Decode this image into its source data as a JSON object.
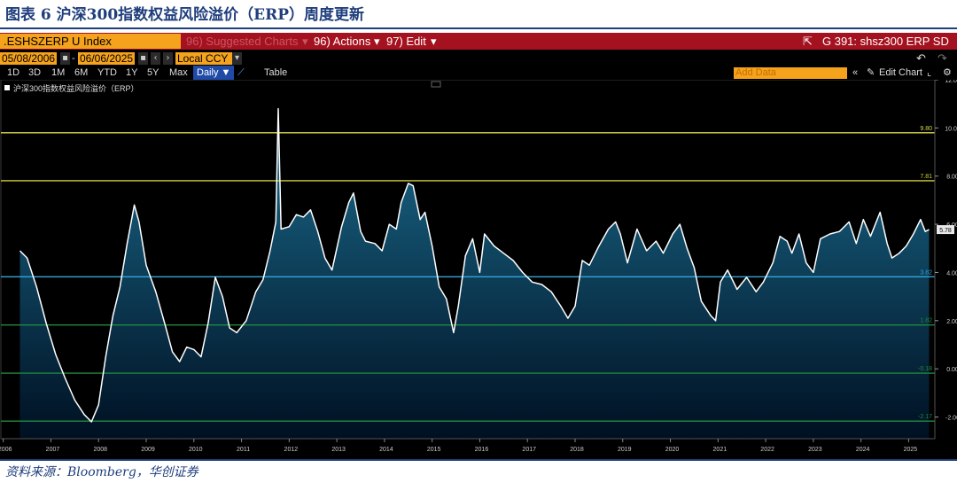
{
  "figure_title": "图表 6  沪深300指数权益风险溢价（ERP）周度更新",
  "source_note": "资料来源：Bloomberg，华创证券",
  "toolbar": {
    "ticker": ".ESHSZERP U Index",
    "suggested_charts": "96) Suggested Charts",
    "actions": "96) Actions",
    "edit": "97) Edit",
    "chart_id": "G 391: shsz300 ERP SD",
    "start_date": "05/08/2006",
    "end_date": "06/06/2025",
    "currency": "Local CCY",
    "periods": [
      "1D",
      "3D",
      "1M",
      "6M",
      "YTD",
      "1Y",
      "5Y",
      "Max"
    ],
    "frequency": "Daily",
    "table_label": "Table",
    "add_data_placeholder": "Add Data",
    "edit_chart": "Edit Chart"
  },
  "colors": {
    "accent_orange": "#f5a21c",
    "toolbar_red": "#a5121f",
    "series_line": "#ffffff",
    "area_fill_top": "#1b6d8f",
    "area_fill_bottom": "#001022",
    "mean_line": "#2fa6d8",
    "sd1_line": "#cfcf3a",
    "sd2_line": "#d9d94a",
    "sd_minus_line": "#1f8a3f"
  },
  "chart_data": {
    "type": "area",
    "legend": "沪深300指数权益风险溢价（ERP）",
    "x_ticks": [
      "2006",
      "2007",
      "2008",
      "2009",
      "2010",
      "2011",
      "2012",
      "2013",
      "2014",
      "2015",
      "2016",
      "2017",
      "2018",
      "2019",
      "2020",
      "2021",
      "2022",
      "2023",
      "2024",
      "2025"
    ],
    "ylim": [
      -2.9,
      12.0
    ],
    "y_ticks": [
      "12.00",
      "10.00",
      "8.00",
      "6.00",
      "4.00",
      "2.00",
      "0.00",
      "-2.00"
    ],
    "y_tick_values": [
      12,
      10,
      8,
      6,
      4,
      2,
      0,
      -2
    ],
    "last_value": "5.78",
    "reference_lines": [
      {
        "name": "+2SD",
        "value": 9.8,
        "label": "9.80"
      },
      {
        "name": "+1SD",
        "value": 7.81,
        "label": "7.81"
      },
      {
        "name": "mean",
        "value": 3.82,
        "label": "3.82"
      },
      {
        "name": "-1SD",
        "value": 1.82,
        "label": "1.82"
      },
      {
        "name": "-2SD",
        "value": -0.18,
        "label": "-0.18"
      },
      {
        "name": "-3SD",
        "value": -2.17,
        "label": "-2.17"
      }
    ],
    "series": [
      {
        "name": "沪深300指数权益风险溢价（ERP）",
        "points": [
          [
            2006.35,
            4.9
          ],
          [
            2006.5,
            4.6
          ],
          [
            2006.7,
            3.4
          ],
          [
            2006.9,
            1.9
          ],
          [
            2007.1,
            0.6
          ],
          [
            2007.3,
            -0.4
          ],
          [
            2007.5,
            -1.3
          ],
          [
            2007.7,
            -1.9
          ],
          [
            2007.85,
            -2.2
          ],
          [
            2008.0,
            -1.5
          ],
          [
            2008.15,
            0.5
          ],
          [
            2008.3,
            2.2
          ],
          [
            2008.45,
            3.4
          ],
          [
            2008.6,
            5.2
          ],
          [
            2008.75,
            6.8
          ],
          [
            2008.85,
            6.1
          ],
          [
            2009.0,
            4.3
          ],
          [
            2009.2,
            3.2
          ],
          [
            2009.4,
            1.8
          ],
          [
            2009.55,
            0.7
          ],
          [
            2009.7,
            0.3
          ],
          [
            2009.85,
            0.9
          ],
          [
            2010.0,
            0.8
          ],
          [
            2010.15,
            0.5
          ],
          [
            2010.3,
            1.9
          ],
          [
            2010.45,
            3.8
          ],
          [
            2010.6,
            3.0
          ],
          [
            2010.75,
            1.7
          ],
          [
            2010.9,
            1.5
          ],
          [
            2011.1,
            2.0
          ],
          [
            2011.3,
            3.2
          ],
          [
            2011.45,
            3.7
          ],
          [
            2011.6,
            4.9
          ],
          [
            2011.72,
            6.1
          ],
          [
            2011.77,
            10.8
          ],
          [
            2011.83,
            5.8
          ],
          [
            2012.0,
            5.9
          ],
          [
            2012.15,
            6.4
          ],
          [
            2012.3,
            6.3
          ],
          [
            2012.45,
            6.6
          ],
          [
            2012.6,
            5.7
          ],
          [
            2012.75,
            4.6
          ],
          [
            2012.9,
            4.1
          ],
          [
            2013.1,
            5.9
          ],
          [
            2013.25,
            6.9
          ],
          [
            2013.35,
            7.3
          ],
          [
            2013.5,
            5.7
          ],
          [
            2013.6,
            5.3
          ],
          [
            2013.8,
            5.2
          ],
          [
            2013.95,
            4.9
          ],
          [
            2014.1,
            6.0
          ],
          [
            2014.25,
            5.8
          ],
          [
            2014.35,
            6.9
          ],
          [
            2014.5,
            7.7
          ],
          [
            2014.6,
            7.6
          ],
          [
            2014.75,
            6.2
          ],
          [
            2014.85,
            6.5
          ],
          [
            2015.0,
            5.1
          ],
          [
            2015.15,
            3.4
          ],
          [
            2015.3,
            2.9
          ],
          [
            2015.45,
            1.5
          ],
          [
            2015.55,
            2.6
          ],
          [
            2015.7,
            4.7
          ],
          [
            2015.85,
            5.4
          ],
          [
            2016.0,
            4.0
          ],
          [
            2016.1,
            5.6
          ],
          [
            2016.3,
            5.1
          ],
          [
            2016.5,
            4.8
          ],
          [
            2016.7,
            4.5
          ],
          [
            2016.9,
            4.0
          ],
          [
            2017.1,
            3.6
          ],
          [
            2017.3,
            3.5
          ],
          [
            2017.5,
            3.2
          ],
          [
            2017.7,
            2.6
          ],
          [
            2017.85,
            2.1
          ],
          [
            2018.0,
            2.6
          ],
          [
            2018.15,
            4.5
          ],
          [
            2018.3,
            4.3
          ],
          [
            2018.5,
            5.1
          ],
          [
            2018.7,
            5.8
          ],
          [
            2018.85,
            6.1
          ],
          [
            2018.95,
            5.6
          ],
          [
            2019.1,
            4.4
          ],
          [
            2019.3,
            5.8
          ],
          [
            2019.5,
            4.9
          ],
          [
            2019.7,
            5.3
          ],
          [
            2019.85,
            4.8
          ],
          [
            2020.05,
            5.6
          ],
          [
            2020.2,
            6.0
          ],
          [
            2020.35,
            5.0
          ],
          [
            2020.5,
            4.2
          ],
          [
            2020.65,
            2.8
          ],
          [
            2020.85,
            2.2
          ],
          [
            2020.95,
            2.0
          ],
          [
            2021.05,
            3.6
          ],
          [
            2021.2,
            4.1
          ],
          [
            2021.4,
            3.3
          ],
          [
            2021.6,
            3.8
          ],
          [
            2021.8,
            3.2
          ],
          [
            2021.95,
            3.6
          ],
          [
            2022.15,
            4.4
          ],
          [
            2022.3,
            5.5
          ],
          [
            2022.45,
            5.3
          ],
          [
            2022.55,
            4.8
          ],
          [
            2022.7,
            5.6
          ],
          [
            2022.85,
            4.4
          ],
          [
            2023.0,
            4.0
          ],
          [
            2023.15,
            5.4
          ],
          [
            2023.35,
            5.6
          ],
          [
            2023.55,
            5.7
          ],
          [
            2023.75,
            6.1
          ],
          [
            2023.9,
            5.2
          ],
          [
            2024.05,
            6.2
          ],
          [
            2024.2,
            5.5
          ],
          [
            2024.4,
            6.5
          ],
          [
            2024.55,
            5.2
          ],
          [
            2024.65,
            4.6
          ],
          [
            2024.8,
            4.8
          ],
          [
            2024.95,
            5.1
          ],
          [
            2025.1,
            5.6
          ],
          [
            2025.25,
            6.2
          ],
          [
            2025.35,
            5.7
          ],
          [
            2025.43,
            5.78
          ]
        ]
      }
    ]
  }
}
